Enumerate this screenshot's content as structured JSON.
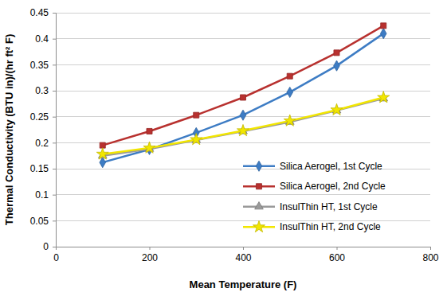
{
  "chart_data": {
    "type": "line",
    "x_label": "Mean Temperature (F)",
    "y_label": "Thermal Conductivity (BTU in)/(hr ft² F)",
    "x": [
      100,
      200,
      300,
      400,
      500,
      600,
      700
    ],
    "xlim": [
      0,
      800
    ],
    "xticks": [
      0,
      200,
      400,
      600,
      800
    ],
    "ylim": [
      0,
      0.45
    ],
    "yticks": [
      0,
      0.05,
      0.1,
      0.15,
      0.2,
      0.25,
      0.3,
      0.35,
      0.4,
      0.45
    ],
    "grid": true,
    "legend": "lower right",
    "series": [
      {
        "name": "Silica Aerogel, 1st Cycle",
        "color": "#3d7cc4",
        "marker": "diamond",
        "values": [
          0.162,
          0.187,
          0.219,
          0.253,
          0.297,
          0.348,
          0.41
        ]
      },
      {
        "name": "Silica Aerogel, 2nd Cycle",
        "color": "#b8312f",
        "marker": "square",
        "values": [
          0.195,
          0.222,
          0.253,
          0.287,
          0.328,
          0.373,
          0.425
        ]
      },
      {
        "name": "InsulThin HT, 1st Cycle",
        "color": "#9a9a9a",
        "marker": "triangle",
        "values": [
          0.175,
          0.188,
          0.205,
          0.222,
          0.24,
          0.262,
          0.285
        ]
      },
      {
        "name": "InsulThin HT, 2nd Cycle",
        "color": "#f2e600",
        "marker": "star",
        "values": [
          0.178,
          0.19,
          0.206,
          0.223,
          0.242,
          0.263,
          0.287
        ]
      }
    ]
  }
}
